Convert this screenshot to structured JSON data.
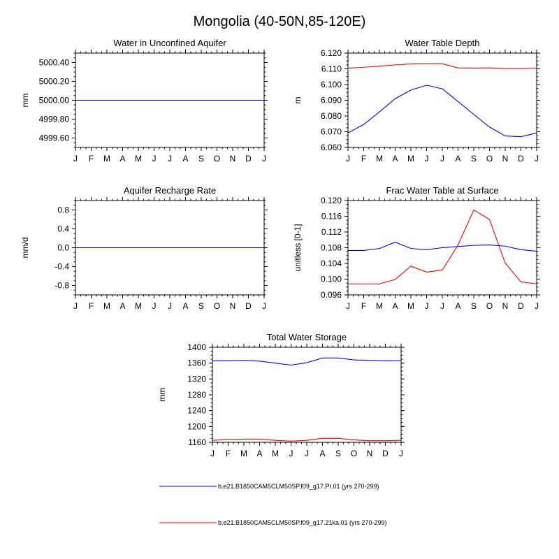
{
  "figure": {
    "title": "Mongolia (40-50N,85-120E)"
  },
  "months": [
    "J",
    "F",
    "M",
    "A",
    "M",
    "J",
    "J",
    "A",
    "S",
    "O",
    "N",
    "D",
    "J"
  ],
  "legend": {
    "entries": [
      {
        "label": "b.e21.B1850CAM5CLM50SP.f09_g17.PI.01 (yrs 270-299)",
        "color": "#0000ff"
      },
      {
        "label": "b.e21.B1850CAM5CLM50SP.f09_g17.21ka.01 (yrs 270-299)",
        "color": "#ff0000"
      }
    ]
  },
  "chart_data": [
    {
      "type": "line",
      "title": "Water in Unconfined Aquifer",
      "ylabel": "mm",
      "ylim": [
        4999.5,
        5000.5
      ],
      "yticks": [
        4999.6,
        4999.8,
        5000.0,
        5000.2,
        5000.4
      ],
      "tick_decimals": 2,
      "x": [
        "J",
        "F",
        "M",
        "A",
        "M",
        "J",
        "J",
        "A",
        "S",
        "O",
        "N",
        "D",
        "J"
      ],
      "series": [
        {
          "color": "#0000ff",
          "values": [
            5000,
            5000,
            5000,
            5000,
            5000,
            5000,
            5000,
            5000,
            5000,
            5000,
            5000,
            5000,
            5000
          ]
        },
        {
          "color": "#ff0000",
          "values": [
            5000,
            5000,
            5000,
            5000,
            5000,
            5000,
            5000,
            5000,
            5000,
            5000,
            5000,
            5000,
            5000
          ]
        }
      ]
    },
    {
      "type": "line",
      "title": "Water Table Depth",
      "ylabel": "m",
      "ylim": [
        6.06,
        6.12
      ],
      "yticks": [
        6.06,
        6.07,
        6.08,
        6.09,
        6.1,
        6.11,
        6.12
      ],
      "tick_decimals": 3,
      "x": [
        "J",
        "F",
        "M",
        "A",
        "M",
        "J",
        "J",
        "A",
        "S",
        "O",
        "N",
        "D",
        "J"
      ],
      "series": [
        {
          "color": "#0000ff",
          "values": [
            6.0692,
            6.0746,
            6.0826,
            6.091,
            6.0965,
            6.0996,
            6.0973,
            6.0892,
            6.081,
            6.073,
            6.0673,
            6.0668,
            6.0692
          ]
        },
        {
          "color": "#ff0000",
          "values": [
            6.1104,
            6.111,
            6.1117,
            6.1125,
            6.1131,
            6.1133,
            6.1132,
            6.1106,
            6.1104,
            6.1106,
            6.1101,
            6.1101,
            6.1104
          ]
        }
      ]
    },
    {
      "type": "line",
      "title": "Aquifer Recharge Rate",
      "ylabel": "mm/d",
      "ylim": [
        -1.0,
        1.0
      ],
      "yticks": [
        -0.8,
        -0.4,
        0.0,
        0.4,
        0.8
      ],
      "tick_decimals": 1,
      "x": [
        "J",
        "F",
        "M",
        "A",
        "M",
        "J",
        "J",
        "A",
        "S",
        "O",
        "N",
        "D",
        "J"
      ],
      "series": [
        {
          "color": "#0000ff",
          "values": [
            0,
            0,
            0,
            0,
            0,
            0,
            0,
            0,
            0,
            0,
            0,
            0,
            0
          ]
        },
        {
          "color": "#ff0000",
          "values": [
            0,
            0,
            0,
            0,
            0,
            0,
            0,
            0,
            0,
            0,
            0,
            0,
            0
          ]
        }
      ]
    },
    {
      "type": "line",
      "title": "Frac Water Table at Surface",
      "ylabel": "unitless [0-1]",
      "ylim": [
        0.096,
        0.12
      ],
      "yticks": [
        0.096,
        0.1,
        0.104,
        0.108,
        0.112,
        0.116,
        0.12
      ],
      "tick_decimals": 3,
      "x": [
        "J",
        "F",
        "M",
        "A",
        "M",
        "J",
        "J",
        "A",
        "S",
        "O",
        "N",
        "D",
        "J"
      ],
      "series": [
        {
          "color": "#0000ff",
          "values": [
            0.1073,
            0.1073,
            0.1078,
            0.1094,
            0.1078,
            0.1075,
            0.108,
            0.1083,
            0.1086,
            0.1087,
            0.1084,
            0.1075,
            0.1071
          ]
        },
        {
          "color": "#ff0000",
          "values": [
            0.0988,
            0.0988,
            0.0988,
            0.0999,
            0.1033,
            0.1018,
            0.1023,
            0.1087,
            0.1176,
            0.1152,
            0.1041,
            0.0993,
            0.0988
          ]
        }
      ]
    },
    {
      "type": "line",
      "title": "Total Water Storage",
      "ylabel": "mm",
      "ylim": [
        1160,
        1400
      ],
      "yticks": [
        1160,
        1200,
        1240,
        1280,
        1320,
        1360,
        1400
      ],
      "tick_decimals": 0,
      "x": [
        "J",
        "F",
        "M",
        "A",
        "M",
        "J",
        "J",
        "A",
        "S",
        "O",
        "N",
        "D",
        "J"
      ],
      "series": [
        {
          "color": "#0000ff",
          "values": [
            1366,
            1366,
            1367,
            1365,
            1360,
            1355,
            1361,
            1373,
            1373,
            1368,
            1367,
            1366,
            1366
          ]
        },
        {
          "color": "#ff0000",
          "values": [
            1165,
            1167,
            1168,
            1168,
            1165,
            1163,
            1165,
            1170,
            1170,
            1166,
            1164,
            1164,
            1165
          ]
        }
      ]
    }
  ]
}
